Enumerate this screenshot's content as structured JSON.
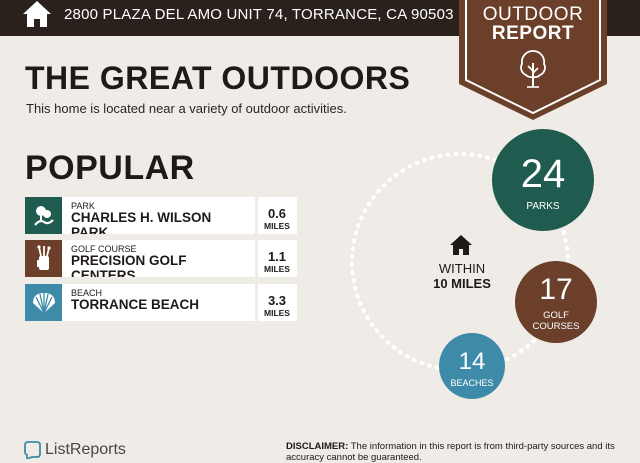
{
  "header": {
    "address": "2800 PLAZA DEL AMO UNIT 74, TORRANCE, CA 90503",
    "home_icon": "house-icon"
  },
  "badge": {
    "line1": "OUTDOOR",
    "line2": "REPORT",
    "icon": "tree-icon",
    "color": "#6b3f2a"
  },
  "main": {
    "title": "THE GREAT OUTDOORS",
    "subtitle": "This home is located near a variety of outdoor activities."
  },
  "popular": {
    "heading": "POPULAR",
    "items": [
      {
        "category": "PARK",
        "name": "CHARLES H. WILSON PARK",
        "distance": "0.6",
        "unit": "MILES",
        "icon": "park-icon",
        "color": "#1f5c4f"
      },
      {
        "category": "GOLF COURSE",
        "name": "PRECISION GOLF CENTERS",
        "distance": "1.1",
        "unit": "MILES",
        "icon": "golf-bag-icon",
        "color": "#6b3f2a"
      },
      {
        "category": "BEACH",
        "name": "TORRANCE BEACH",
        "distance": "3.3",
        "unit": "MILES",
        "icon": "shell-icon",
        "color": "#3d8ba8"
      }
    ]
  },
  "summary": {
    "within_line1": "WITHIN",
    "within_line2": "10 MILES",
    "counts": [
      {
        "value": "24",
        "label": "PARKS",
        "color": "#1f5c4f"
      },
      {
        "value": "17",
        "label": "GOLF COURSES",
        "label_line1": "GOLF",
        "label_line2": "COURSES",
        "color": "#6b3f2a"
      },
      {
        "value": "14",
        "label": "BEACHES",
        "color": "#3d8ba8"
      }
    ]
  },
  "footer": {
    "logo": "ListReports",
    "disclaimer_label": "DISCLAIMER:",
    "disclaimer_text": " The information in this report is from third-party sources and its accuracy cannot be guaranteed."
  }
}
